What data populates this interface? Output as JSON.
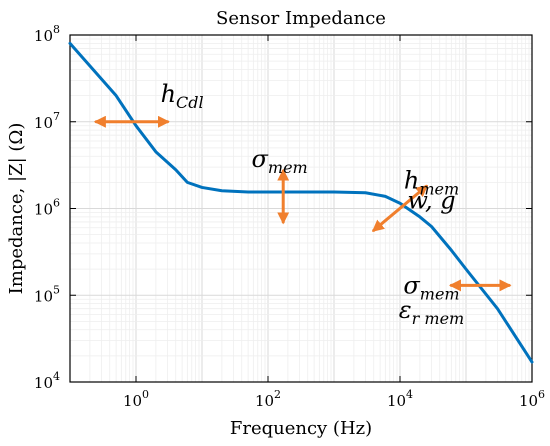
{
  "chart_data": {
    "type": "line",
    "title": "Sensor Impedance",
    "xlabel": "Frequency (Hz)",
    "ylabel": "Impedance, |Z| (Ω)",
    "xscale": "log",
    "yscale": "log",
    "xlim": [
      0.1,
      1000000
    ],
    "ylim": [
      10000,
      100000000
    ],
    "grid": true,
    "legend": "none",
    "x_ticks": [
      1,
      100,
      10000,
      1000000
    ],
    "x_tick_labels": [
      {
        "base": "10",
        "exp": "0"
      },
      {
        "base": "10",
        "exp": "2"
      },
      {
        "base": "10",
        "exp": "4"
      },
      {
        "base": "10",
        "exp": "6"
      }
    ],
    "y_ticks": [
      10000,
      100000,
      1000000,
      10000000,
      100000000
    ],
    "y_tick_labels": [
      {
        "base": "10",
        "exp": "4"
      },
      {
        "base": "10",
        "exp": "5"
      },
      {
        "base": "10",
        "exp": "6"
      },
      {
        "base": "10",
        "exp": "7"
      },
      {
        "base": "10",
        "exp": "8"
      }
    ],
    "series": [
      {
        "color": "#0072BD",
        "x": [
          0.1,
          0.5,
          1,
          2,
          4,
          6,
          10,
          20,
          50,
          100,
          300,
          1000,
          3000,
          6000,
          10000,
          20000,
          30000,
          60000,
          100000,
          300000,
          1000000
        ],
        "y": [
          80000000,
          20000000,
          9000000,
          4500000,
          2800000,
          2000000,
          1750000,
          1600000,
          1550000,
          1550000,
          1550000,
          1550000,
          1520000,
          1380000,
          1150000,
          800000,
          620000,
          330000,
          200000,
          70000,
          17000
        ]
      }
    ],
    "annotations": [
      {
        "main": "h",
        "sub": "Cdl",
        "x": 5,
        "y": 17000000
      },
      {
        "main": "σ",
        "sub": "mem",
        "x": 150,
        "y": 3000000
      },
      {
        "main": "h",
        "sub": "mem",
        "x": 30000,
        "y": 1700000
      },
      {
        "main": "w, g",
        "sub": "",
        "x": 30000,
        "y": 1000000
      },
      {
        "main": "σ",
        "sub": "mem",
        "x": 30000,
        "y": 105000
      },
      {
        "main": "ε",
        "sub": "r mem",
        "x": 30000,
        "y": 55000
      }
    ],
    "arrows": [
      {
        "color": "#F07F2D",
        "x1": 0.25,
        "y1": 10000000,
        "x2": 3,
        "y2": 10000000,
        "both": true
      },
      {
        "color": "#F07F2D",
        "x1": 170,
        "y1": 2700000,
        "x2": 170,
        "y2": 700000,
        "both": true
      },
      {
        "color": "#F07F2D",
        "x1": 4000,
        "y1": 560000,
        "x2": 25000,
        "y2": 1800000,
        "both": true
      },
      {
        "color": "#F07F2D",
        "x1": 60000,
        "y1": 130000,
        "x2": 450000,
        "y2": 130000,
        "both": true
      }
    ]
  }
}
